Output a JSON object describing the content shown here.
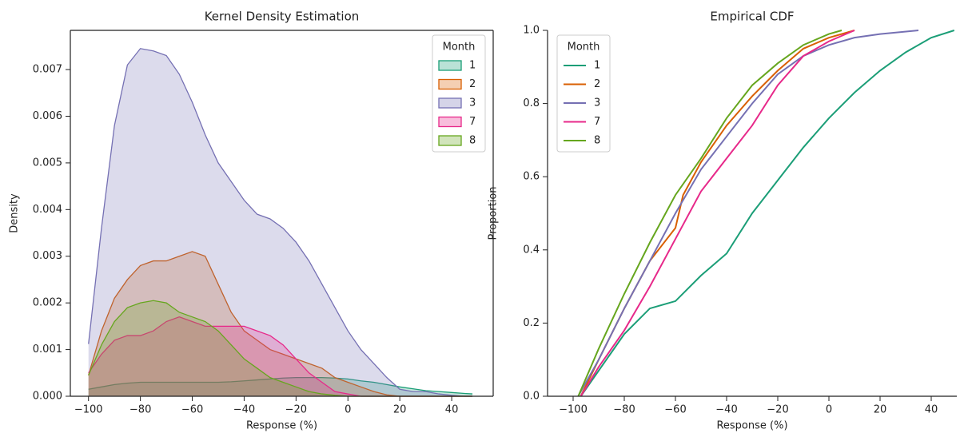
{
  "chart_data": [
    {
      "type": "kde",
      "title": "Kernel Density Estimation",
      "x_label": "Response (%)",
      "y_label": "Density",
      "legend_title": "Month",
      "legend": "upper right",
      "box": true,
      "x": [
        -100,
        -95,
        -90,
        -85,
        -80,
        -75,
        -70,
        -65,
        -60,
        -55,
        -50,
        -45,
        -40,
        -35,
        -30,
        -25,
        -20,
        -15,
        -10,
        -5,
        0,
        5,
        10,
        15,
        20,
        25,
        30,
        35,
        40,
        45,
        48
      ],
      "series": [
        {
          "name": "1",
          "color": "#1b9e77",
          "values": [
            0.00015,
            0.0002,
            0.00025,
            0.00028,
            0.0003,
            0.0003,
            0.0003,
            0.0003,
            0.0003,
            0.0003,
            0.0003,
            0.00031,
            0.00033,
            0.00035,
            0.00037,
            0.00039,
            0.0004,
            0.0004,
            0.0004,
            0.00039,
            0.00037,
            0.00033,
            0.0003,
            0.00025,
            0.0002,
            0.00016,
            0.00012,
            0.0001,
            8e-05,
            6e-05,
            5e-05
          ]
        },
        {
          "name": "2",
          "color": "#d95f02",
          "values": [
            0.00045,
            0.0014,
            0.0021,
            0.0025,
            0.0028,
            0.0029,
            0.0029,
            0.003,
            0.0031,
            0.003,
            0.0024,
            0.0018,
            0.0014,
            0.0012,
            0.001,
            0.0009,
            0.0008,
            0.0007,
            0.0006,
            0.0004,
            0.0003,
            0.0002,
            0.0001,
            3e-05,
            0,
            0,
            0,
            0,
            0,
            0,
            0
          ]
        },
        {
          "name": "3",
          "color": "#7570b3",
          "values": [
            0.00112,
            0.0036,
            0.0058,
            0.0071,
            0.00745,
            0.0074,
            0.0073,
            0.0069,
            0.0063,
            0.0056,
            0.005,
            0.0046,
            0.0042,
            0.0039,
            0.0038,
            0.0036,
            0.0033,
            0.0029,
            0.0024,
            0.0019,
            0.0014,
            0.001,
            0.0007,
            0.0004,
            0.00015,
            0.0001,
            0.0001,
            5e-05,
            2e-05,
            0,
            0
          ]
        },
        {
          "name": "7",
          "color": "#e7298a",
          "values": [
            0.0005,
            0.0009,
            0.0012,
            0.0013,
            0.0013,
            0.0014,
            0.0016,
            0.0017,
            0.0016,
            0.0015,
            0.0015,
            0.0015,
            0.0015,
            0.0014,
            0.0013,
            0.0011,
            0.0008,
            0.0005,
            0.0003,
            0.0001,
            5e-05,
            0,
            0,
            0,
            0,
            0,
            0,
            0,
            0,
            0,
            0
          ]
        },
        {
          "name": "8",
          "color": "#66a61e",
          "values": [
            0.00045,
            0.0011,
            0.0016,
            0.0019,
            0.002,
            0.00205,
            0.002,
            0.0018,
            0.0017,
            0.0016,
            0.0014,
            0.0011,
            0.0008,
            0.0006,
            0.0004,
            0.0003,
            0.0002,
            0.0001,
            5e-05,
            2e-05,
            0,
            0,
            0,
            0,
            0,
            0,
            0,
            0,
            0,
            0,
            0
          ]
        }
      ],
      "xlim": [
        -107,
        56
      ],
      "ylim": [
        0,
        0.00784
      ],
      "xticks": [
        {
          "value": -100,
          "label": "−100"
        },
        {
          "value": -80,
          "label": "−80"
        },
        {
          "value": -60,
          "label": "−60"
        },
        {
          "value": -40,
          "label": "−40"
        },
        {
          "value": -20,
          "label": "−20"
        },
        0,
        20,
        40
      ],
      "yticks": [
        {
          "value": 0,
          "label": "0.000"
        },
        {
          "value": 0.001,
          "label": "0.001"
        },
        {
          "value": 0.002,
          "label": "0.002"
        },
        {
          "value": 0.003,
          "label": "0.003"
        },
        {
          "value": 0.004,
          "label": "0.004"
        },
        {
          "value": 0.005,
          "label": "0.005"
        },
        {
          "value": 0.006,
          "label": "0.006"
        },
        {
          "value": 0.007,
          "label": "0.007"
        }
      ]
    },
    {
      "type": "ecdf",
      "title": "Empirical CDF",
      "x_label": "Response (%)",
      "y_label": "Proportion",
      "legend_title": "Month",
      "legend": "upper left",
      "box": false,
      "series": [
        {
          "name": "1",
          "color": "#1b9e77",
          "x": [
            -97,
            -90,
            -80,
            -70,
            -60,
            -50,
            -40,
            -30,
            -20,
            -10,
            0,
            10,
            20,
            30,
            40,
            49
          ],
          "values": [
            0,
            0.07,
            0.17,
            0.24,
            0.26,
            0.33,
            0.39,
            0.5,
            0.59,
            0.68,
            0.76,
            0.83,
            0.89,
            0.94,
            0.98,
            1.0
          ]
        },
        {
          "name": "2",
          "color": "#d95f02",
          "x": [
            -97,
            -90,
            -80,
            -70,
            -60,
            -57,
            -50,
            -40,
            -30,
            -20,
            -10,
            0,
            10
          ],
          "values": [
            0,
            0.1,
            0.24,
            0.37,
            0.46,
            0.55,
            0.64,
            0.74,
            0.82,
            0.89,
            0.95,
            0.98,
            1.0
          ]
        },
        {
          "name": "3",
          "color": "#7570b3",
          "x": [
            -98,
            -90,
            -80,
            -70,
            -60,
            -50,
            -40,
            -30,
            -20,
            -10,
            0,
            10,
            20,
            35
          ],
          "values": [
            0,
            0.1,
            0.24,
            0.37,
            0.5,
            0.62,
            0.71,
            0.8,
            0.88,
            0.93,
            0.96,
            0.98,
            0.99,
            1.0
          ]
        },
        {
          "name": "7",
          "color": "#e7298a",
          "x": [
            -97,
            -90,
            -80,
            -70,
            -60,
            -50,
            -40,
            -30,
            -20,
            -10,
            0,
            10
          ],
          "values": [
            0,
            0.08,
            0.18,
            0.3,
            0.43,
            0.56,
            0.65,
            0.74,
            0.85,
            0.93,
            0.97,
            1.0
          ]
        },
        {
          "name": "8",
          "color": "#66a61e",
          "x": [
            -98,
            -90,
            -80,
            -70,
            -60,
            -50,
            -40,
            -30,
            -20,
            -10,
            0,
            5
          ],
          "values": [
            0,
            0.13,
            0.28,
            0.42,
            0.55,
            0.65,
            0.76,
            0.85,
            0.91,
            0.96,
            0.99,
            1.0
          ]
        }
      ],
      "xlim": [
        -110,
        50
      ],
      "ylim": [
        0,
        1
      ],
      "xticks": [
        {
          "value": -100,
          "label": "−100"
        },
        {
          "value": -80,
          "label": "−80"
        },
        {
          "value": -60,
          "label": "−60"
        },
        {
          "value": -40,
          "label": "−40"
        },
        {
          "value": -20,
          "label": "−20"
        },
        0,
        20,
        40
      ],
      "yticks": [
        {
          "value": 0,
          "label": "0.0"
        },
        0.2,
        0.4,
        0.6,
        0.8,
        {
          "value": 1,
          "label": "1.0"
        }
      ]
    }
  ]
}
